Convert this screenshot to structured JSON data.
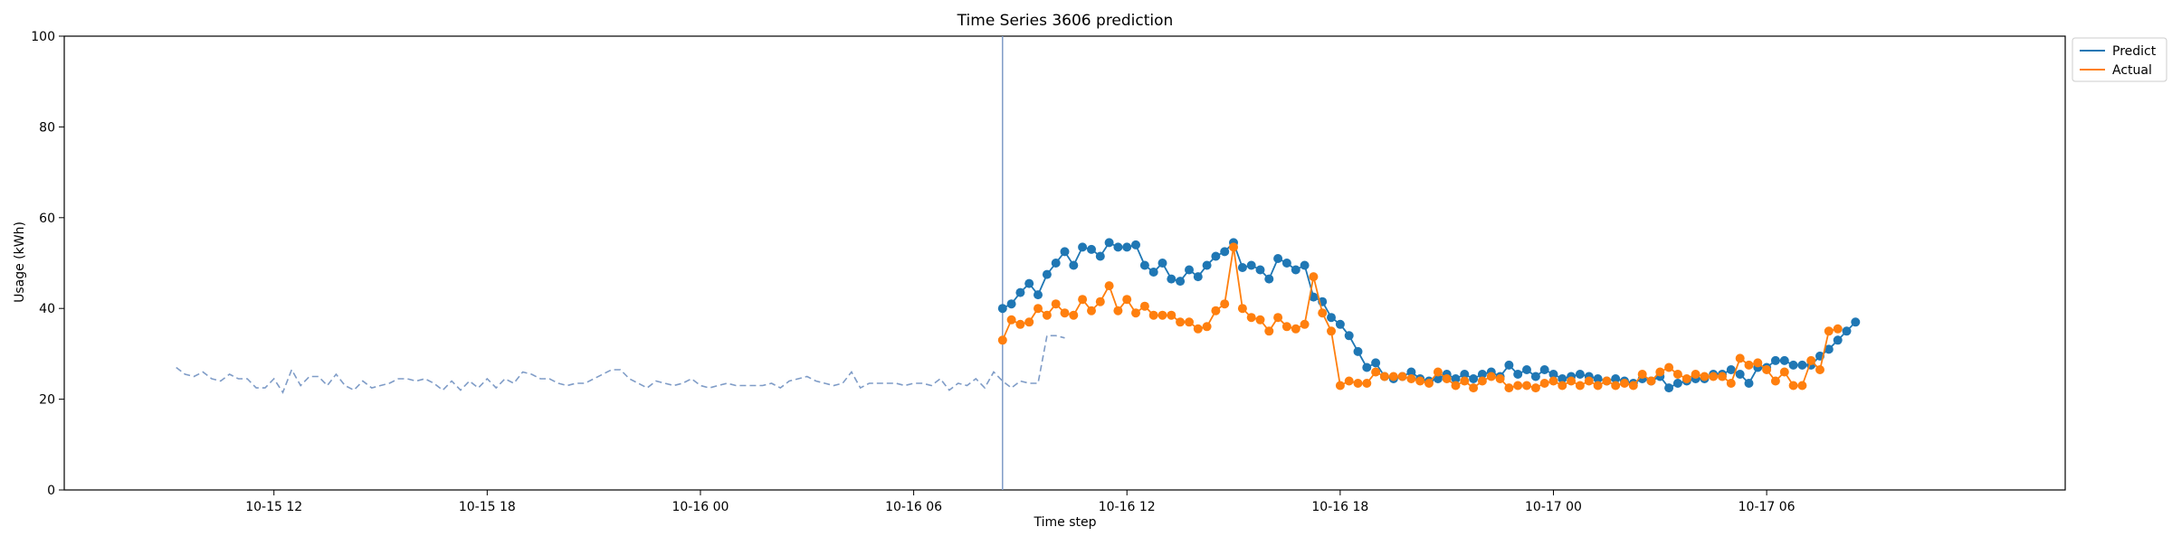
{
  "chart_data": {
    "type": "line",
    "title": "Time Series 3606 prediction",
    "xlabel": "Time step",
    "ylabel": "Usage (kWh)",
    "ylim": [
      0,
      100
    ],
    "yticks": [
      0,
      20,
      40,
      60,
      80,
      100
    ],
    "x_start": "10-15 09:15",
    "x_step_minutes": 15,
    "xlim": [
      "10-15 06:06",
      "10-17 14:24"
    ],
    "xticks": [
      {
        "label": "10-15 12",
        "at": "10-15 12:00"
      },
      {
        "label": "10-15 18",
        "at": "10-15 18:00"
      },
      {
        "label": "10-16 00",
        "at": "10-16 00:00"
      },
      {
        "label": "10-16 06",
        "at": "10-16 06:00"
      },
      {
        "label": "10-16 12",
        "at": "10-16 12:00"
      },
      {
        "label": "10-16 18",
        "at": "10-16 18:00"
      },
      {
        "label": "10-17 00",
        "at": "10-17 00:00"
      },
      {
        "label": "10-17 06",
        "at": "10-17 06:00"
      }
    ],
    "forecast_start": "10-16 08:30",
    "grid": false,
    "legend_position": "top-right, outside plot",
    "history": {
      "start": "10-15 09:15",
      "color": "#7f9cc7",
      "style": "dashed",
      "values": [
        27,
        25.5,
        25,
        26,
        24.5,
        24,
        25.5,
        24.5,
        24.5,
        22.5,
        22.5,
        24.5,
        21.5,
        26.5,
        23,
        25,
        25,
        23,
        25.5,
        23,
        22,
        24,
        22.5,
        23,
        23.5,
        24.5,
        24.5,
        24,
        24.5,
        23.5,
        22,
        24,
        22,
        24,
        22.5,
        24.5,
        22.5,
        24.5,
        23.5,
        26,
        25.5,
        24.5,
        24.5,
        23.5,
        23,
        23.5,
        23.5,
        24.5,
        25.5,
        26.5,
        26.5,
        24.5,
        23.5,
        22.5,
        24,
        23.5,
        23,
        23.5,
        24.5,
        23,
        22.5,
        23,
        23.5,
        23,
        23,
        23,
        23,
        23.5,
        22.5,
        24,
        24.5,
        25,
        24,
        23.5,
        23,
        23.5,
        26,
        22.5,
        23.5,
        23.5,
        23.5,
        23.5,
        23,
        23.5,
        23.5,
        23,
        24.5,
        22,
        23.5,
        23,
        24.5,
        22.5,
        26,
        24,
        22.5,
        24,
        23.5,
        23.5,
        34,
        34,
        33.5
      ]
    },
    "series": [
      {
        "name": "Predict",
        "color": "#1f77b4",
        "values": [
          40,
          41,
          43.5,
          45.5,
          43,
          47.5,
          50,
          52.5,
          49.5,
          53.5,
          53,
          51.5,
          54.5,
          53.5,
          53.5,
          54,
          49.5,
          48,
          50,
          46.5,
          46,
          48.5,
          47,
          49.5,
          51.5,
          52.5,
          54.5,
          49,
          49.5,
          48.5,
          46.5,
          51,
          50,
          48.5,
          49.5,
          42.5,
          41.5,
          38,
          36.5,
          34,
          30.5,
          27,
          28,
          25,
          24.5,
          25,
          26,
          24.5,
          24,
          24.5,
          25.5,
          24.5,
          25.5,
          24.5,
          25.5,
          26,
          25,
          27.5,
          25.5,
          26.5,
          25,
          26.5,
          25.5,
          24.5,
          25,
          25.5,
          25,
          24.5,
          24,
          24.5,
          24,
          23.5,
          24.5,
          24,
          25,
          22.5,
          23.5,
          24,
          24.5,
          24.5,
          25.5,
          25.5,
          26.5,
          25.5,
          23.5,
          27,
          27,
          28.5,
          28.5,
          27.5,
          27.5,
          27.5,
          29.5,
          31,
          33,
          35,
          37
        ]
      },
      {
        "name": "Actual",
        "color": "#ff7f0e",
        "values": [
          33,
          37.5,
          36.5,
          37,
          40,
          38.5,
          41,
          39,
          38.5,
          42,
          39.5,
          41.5,
          45,
          39.5,
          42,
          39,
          40.5,
          38.5,
          38.5,
          38.5,
          37,
          37,
          35.5,
          36,
          39.5,
          41,
          53.5,
          40,
          38,
          37.5,
          35,
          38,
          36,
          35.5,
          36.5,
          47,
          39,
          35,
          23,
          24,
          23.5,
          23.5,
          26,
          25,
          25,
          25,
          24.5,
          24,
          23.5,
          26,
          24.5,
          23,
          24,
          22.5,
          24,
          25,
          24.5,
          22.5,
          23,
          23,
          22.5,
          23.5,
          24,
          23,
          24,
          23,
          24,
          23,
          24,
          23,
          23.5,
          23,
          25.5,
          24,
          26,
          27,
          25.5,
          24.5,
          25.5,
          25,
          25,
          25,
          23.5,
          29,
          27.5,
          28,
          26.5,
          24,
          26,
          23,
          23,
          28.5,
          26.5,
          35,
          35.5
        ]
      }
    ]
  }
}
